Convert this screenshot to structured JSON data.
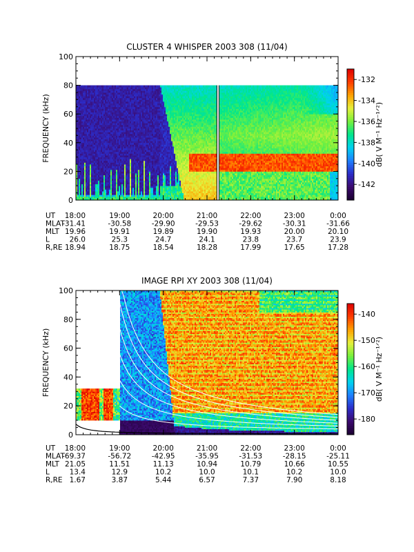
{
  "chart_data": [
    {
      "type": "heatmap",
      "title": "CLUSTER 4 WHISPER 2003 308 (11/04)",
      "ylabel": "FREQUENCY (kHz)",
      "ylim": [
        0,
        100
      ],
      "yticks": [
        "0",
        "20",
        "40",
        "60",
        "80",
        "100"
      ],
      "xlim": [
        "18:00",
        "0:00"
      ],
      "x_categories": [
        "18:00",
        "19:00",
        "20:00",
        "21:00",
        "22:00",
        "23:00",
        "0:00"
      ],
      "colorbar": {
        "label": "dB( V M⁻¹ Hz⁻¹ᐟ²)",
        "ticks": [
          "-132",
          "-134",
          "-136",
          "-138",
          "-140",
          "-142"
        ],
        "range": [
          -143.5,
          -131
        ],
        "colors": [
          "#1a0030",
          "#3c0a6e",
          "#2c2cc8",
          "#1e80ff",
          "#00d2f0",
          "#00e68c",
          "#78f03c",
          "#e6f03c",
          "#ffa000",
          "#ff3c00",
          "#dc0000"
        ]
      },
      "features": {
        "data_top_khz": 80,
        "turn_on_time": "20:00",
        "data_gap_time": "21:15",
        "band_khz": [
          20,
          32
        ]
      },
      "table": {
        "rows": [
          {
            "label": "UT",
            "values": [
              "18:00",
              "19:00",
              "20:00",
              "21:00",
              "22:00",
              "23:00",
              "0:00"
            ]
          },
          {
            "label": "MLAT",
            "values": [
              "-31.41",
              "-30.58",
              "-29.90",
              "-29.53",
              "-29.62",
              "-30.31",
              "-31.66"
            ]
          },
          {
            "label": "MLT",
            "values": [
              "19.96",
              "19.91",
              "19.89",
              "19.90",
              "19.93",
              "20.00",
              "20.10"
            ]
          },
          {
            "label": "L",
            "values": [
              "26.0",
              "25.3",
              "24.7",
              "24.1",
              "23.8",
              "23.7",
              "23.9"
            ]
          },
          {
            "label": "R,RE",
            "values": [
              "18.94",
              "18.75",
              "18.54",
              "18.28",
              "17.99",
              "17.65",
              "17.28"
            ]
          }
        ]
      }
    },
    {
      "type": "heatmap",
      "title": "IMAGE RPI XY 2003 308 (11/04)",
      "ylabel": "FREQUENCY (kHz)",
      "ylim": [
        0,
        100
      ],
      "yticks": [
        "0",
        "20",
        "40",
        "60",
        "80",
        "100"
      ],
      "xlim": [
        "18:00",
        "0:00"
      ],
      "x_categories": [
        "18:00",
        "19:00",
        "20:00",
        "21:00",
        "22:00",
        "23:00",
        "0:00"
      ],
      "colorbar": {
        "label": "dB( V M⁻¹ Hz⁻¹ᐟ²)",
        "ticks": [
          "-140",
          "-150",
          "-160",
          "-170",
          "-180"
        ],
        "range": [
          -186,
          -136
        ],
        "colors": [
          "#1a0030",
          "#3c0a6e",
          "#2c2cc8",
          "#1e80ff",
          "#00d2f0",
          "#00e68c",
          "#78f03c",
          "#e6f03c",
          "#ffa000",
          "#ff3c00",
          "#dc0000"
        ]
      },
      "features": {
        "low_band_khz": [
          10,
          32
        ],
        "gap_until": "19:00",
        "turn_on_time": "19:55",
        "fitted_curves": 6
      },
      "table": {
        "rows": [
          {
            "label": "UT",
            "values": [
              "18:00",
              "19:00",
              "20:00",
              "21:00",
              "22:00",
              "23:00",
              "0:00"
            ]
          },
          {
            "label": "MLAT",
            "values": [
              "-69.37",
              "-56.72",
              "-42.95",
              "-35.95",
              "-31.53",
              "-28.15",
              "-25.11"
            ]
          },
          {
            "label": "MLT",
            "values": [
              "21.05",
              "11.51",
              "11.13",
              "10.94",
              "10.79",
              "10.66",
              "10.55"
            ]
          },
          {
            "label": "L",
            "values": [
              "13.4",
              "12.9",
              "10.2",
              "10.0",
              "10.1",
              "10.2",
              "10.0"
            ]
          },
          {
            "label": "R,RE",
            "values": [
              "1.67",
              "3.87",
              "5.44",
              "6.57",
              "7.37",
              "7.90",
              "8.18"
            ]
          }
        ]
      }
    }
  ]
}
